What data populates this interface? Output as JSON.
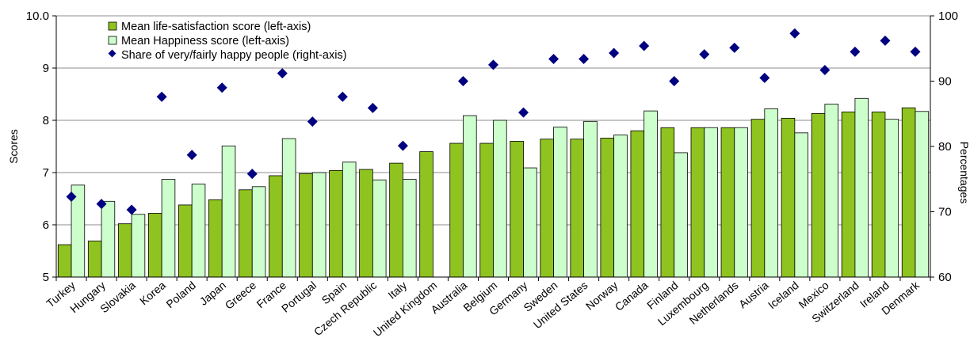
{
  "chart_data": {
    "type": "bar",
    "categories": [
      "Turkey",
      "Hungary",
      "Slovakia",
      "Korea",
      "Poland",
      "Japan",
      "Greece",
      "France",
      "Portugal",
      "Spain",
      "Czech Republic",
      "Italy",
      "United Kingdom",
      "Australia",
      "Belgium",
      "Germany",
      "Sweden",
      "United States",
      "Norway",
      "Canada",
      "Finland",
      "Luxembourg",
      "Netherlands",
      "Austria",
      "Iceland",
      "Mexico",
      "Switzerland",
      "Ireland",
      "Denmark"
    ],
    "series": [
      {
        "name": "Mean life-satisfaction score (left-axis)",
        "axis": "left",
        "kind": "bar",
        "color": "#8fc31f",
        "values": [
          5.62,
          5.69,
          6.02,
          6.22,
          6.38,
          6.48,
          6.67,
          6.94,
          6.98,
          7.04,
          7.06,
          7.18,
          7.4,
          7.56,
          7.56,
          7.6,
          7.64,
          7.64,
          7.66,
          7.8,
          7.86,
          7.86,
          7.86,
          8.02,
          8.04,
          8.13,
          8.16,
          8.16,
          8.24
        ]
      },
      {
        "name": "Mean Happiness score (left-axis)",
        "axis": "left",
        "kind": "bar",
        "color": "#ccffcc",
        "values": [
          6.76,
          6.45,
          6.2,
          6.87,
          6.78,
          7.51,
          6.73,
          7.65,
          7.0,
          7.2,
          6.86,
          6.87,
          null,
          8.09,
          8.0,
          7.09,
          7.87,
          7.98,
          7.72,
          8.18,
          7.38,
          7.86,
          7.86,
          8.22,
          7.76,
          8.31,
          8.42,
          8.02,
          8.17
        ]
      },
      {
        "name": "Share of very/fairly happy people (right-axis)",
        "axis": "right",
        "kind": "marker",
        "color": "#000080",
        "values": [
          72.3,
          71.2,
          70.3,
          87.6,
          78.7,
          89.0,
          75.8,
          91.2,
          83.8,
          87.6,
          85.9,
          80.1,
          null,
          90.0,
          92.5,
          85.2,
          93.4,
          93.4,
          94.3,
          95.4,
          90.0,
          94.1,
          95.1,
          90.5,
          97.3,
          91.7,
          94.5,
          96.2,
          94.5
        ]
      }
    ],
    "ylim": [
      5,
      10
    ],
    "y2lim": [
      60,
      100
    ],
    "yticks": [
      5,
      6,
      7,
      8,
      9,
      10
    ],
    "y2ticks": [
      60,
      70,
      80,
      90,
      100
    ],
    "ylabel": "Scores",
    "y2label": "Percentages",
    "grid": true,
    "legend_position": "top-left"
  }
}
